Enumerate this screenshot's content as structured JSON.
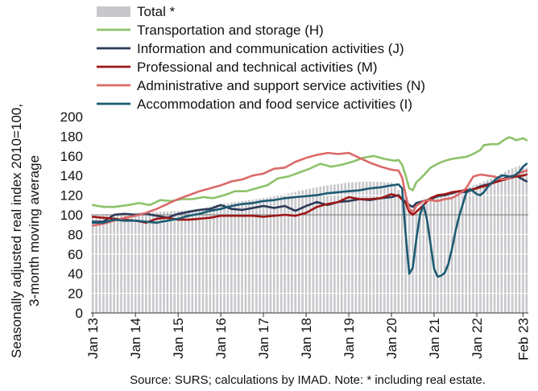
{
  "chart_data": {
    "type": "line",
    "title": "",
    "ylabel": "Seasonally adjusted real index 2010=100, 3-month moving average",
    "xlabel": "",
    "ylim": [
      0,
      200
    ],
    "yticks": [
      "0",
      "20",
      "40",
      "60",
      "80",
      "100",
      "120",
      "140",
      "160",
      "180",
      "200"
    ],
    "xtick_labels": [
      "Jan 13",
      "Jan 14",
      "Jan 15",
      "Jan 16",
      "Jan 17",
      "Jan 18",
      "Jan 19",
      "Jan 20",
      "Jan 21",
      "Jan 22",
      "Feb 23"
    ],
    "x_start": "Jan 2013",
    "x_end": "Feb 2023",
    "grid": "horizontal",
    "legend_position": "top-left",
    "source": "Source: SURS; calculations by IMAD. Note: * including real estate.",
    "bars": {
      "name": "Total *",
      "color": "#c8c8cc",
      "anchors": [
        [
          0,
          99
        ],
        [
          6,
          100
        ],
        [
          12,
          102
        ],
        [
          18,
          103
        ],
        [
          24,
          104
        ],
        [
          30,
          106
        ],
        [
          36,
          111
        ],
        [
          42,
          114
        ],
        [
          48,
          117
        ],
        [
          54,
          121
        ],
        [
          60,
          126
        ],
        [
          66,
          130
        ],
        [
          72,
          133
        ],
        [
          78,
          134
        ],
        [
          84,
          133
        ],
        [
          88,
          118
        ],
        [
          90,
          104
        ],
        [
          93,
          108
        ],
        [
          96,
          118
        ],
        [
          102,
          124
        ],
        [
          108,
          131
        ],
        [
          114,
          140
        ],
        [
          117,
          146
        ],
        [
          120,
          150
        ],
        [
          122,
          148
        ]
      ]
    },
    "series": [
      {
        "name": "Transportation and storage (H)",
        "color": "#8dc26a",
        "anchors": [
          [
            0,
            110
          ],
          [
            3,
            108
          ],
          [
            6,
            108
          ],
          [
            10,
            110
          ],
          [
            13,
            112
          ],
          [
            16,
            110
          ],
          [
            19,
            115
          ],
          [
            22,
            114
          ],
          [
            25,
            116
          ],
          [
            28,
            116
          ],
          [
            31,
            118
          ],
          [
            34,
            117
          ],
          [
            37,
            120
          ],
          [
            40,
            124
          ],
          [
            43,
            124
          ],
          [
            46,
            127
          ],
          [
            49,
            130
          ],
          [
            52,
            137
          ],
          [
            55,
            139
          ],
          [
            58,
            143
          ],
          [
            61,
            147
          ],
          [
            64,
            152
          ],
          [
            67,
            149
          ],
          [
            70,
            151
          ],
          [
            73,
            154
          ],
          [
            76,
            158
          ],
          [
            79,
            160
          ],
          [
            82,
            157
          ],
          [
            85,
            155
          ],
          [
            86,
            156
          ],
          [
            87,
            151
          ],
          [
            88,
            140
          ],
          [
            89,
            127
          ],
          [
            90,
            125
          ],
          [
            91,
            133
          ],
          [
            93,
            140
          ],
          [
            95,
            148
          ],
          [
            97,
            152
          ],
          [
            99,
            155
          ],
          [
            101,
            157
          ],
          [
            103,
            158
          ],
          [
            105,
            159
          ],
          [
            107,
            162
          ],
          [
            109,
            166
          ],
          [
            110,
            171
          ],
          [
            112,
            172
          ],
          [
            114,
            172
          ],
          [
            116,
            177
          ],
          [
            117,
            179
          ],
          [
            118,
            178
          ],
          [
            119,
            176
          ],
          [
            120,
            177
          ],
          [
            121,
            178
          ],
          [
            122,
            176
          ],
          [
            123,
            172
          ],
          [
            124,
            171
          ]
        ]
      },
      {
        "name": "Information and communication activities (J)",
        "color": "#2b3a57",
        "anchors": [
          [
            0,
            93
          ],
          [
            3,
            93
          ],
          [
            6,
            100
          ],
          [
            9,
            101
          ],
          [
            12,
            100
          ],
          [
            15,
            101
          ],
          [
            18,
            99
          ],
          [
            21,
            97
          ],
          [
            24,
            101
          ],
          [
            27,
            103
          ],
          [
            30,
            105
          ],
          [
            33,
            106
          ],
          [
            36,
            110
          ],
          [
            39,
            106
          ],
          [
            42,
            105
          ],
          [
            45,
            107
          ],
          [
            48,
            109
          ],
          [
            51,
            107
          ],
          [
            54,
            109
          ],
          [
            57,
            104
          ],
          [
            60,
            109
          ],
          [
            63,
            113
          ],
          [
            66,
            110
          ],
          [
            69,
            113
          ],
          [
            72,
            114
          ],
          [
            75,
            116
          ],
          [
            78,
            115
          ],
          [
            81,
            117
          ],
          [
            84,
            118
          ],
          [
            86,
            120
          ],
          [
            87,
            116
          ],
          [
            89,
            110
          ],
          [
            90,
            108
          ],
          [
            91,
            112
          ],
          [
            93,
            114
          ],
          [
            95,
            116
          ],
          [
            97,
            119
          ],
          [
            99,
            120
          ],
          [
            101,
            122
          ],
          [
            103,
            124
          ],
          [
            105,
            123
          ],
          [
            107,
            126
          ],
          [
            109,
            129
          ],
          [
            111,
            131
          ],
          [
            113,
            133
          ],
          [
            115,
            136
          ],
          [
            117,
            139
          ],
          [
            119,
            140
          ],
          [
            120,
            138
          ],
          [
            121,
            136
          ],
          [
            122,
            134
          ],
          [
            123,
            135
          ],
          [
            124,
            139
          ]
        ]
      },
      {
        "name": "Professional and technical activities (M)",
        "color": "#9e1717",
        "anchors": [
          [
            0,
            98
          ],
          [
            3,
            97
          ],
          [
            6,
            96
          ],
          [
            9,
            95
          ],
          [
            12,
            94
          ],
          [
            15,
            92
          ],
          [
            18,
            96
          ],
          [
            21,
            97
          ],
          [
            24,
            95
          ],
          [
            27,
            95
          ],
          [
            30,
            96
          ],
          [
            33,
            97
          ],
          [
            36,
            99
          ],
          [
            39,
            99
          ],
          [
            42,
            99
          ],
          [
            45,
            99
          ],
          [
            48,
            98
          ],
          [
            51,
            99
          ],
          [
            54,
            100
          ],
          [
            57,
            99
          ],
          [
            60,
            102
          ],
          [
            63,
            108
          ],
          [
            66,
            111
          ],
          [
            69,
            113
          ],
          [
            72,
            118
          ],
          [
            75,
            116
          ],
          [
            78,
            116
          ],
          [
            81,
            117
          ],
          [
            84,
            121
          ],
          [
            86,
            119
          ],
          [
            88,
            112
          ],
          [
            89,
            103
          ],
          [
            90,
            100
          ],
          [
            91,
            103
          ],
          [
            93,
            110
          ],
          [
            95,
            117
          ],
          [
            97,
            120
          ],
          [
            99,
            121
          ],
          [
            101,
            123
          ],
          [
            103,
            124
          ],
          [
            105,
            125
          ],
          [
            107,
            126
          ],
          [
            109,
            128
          ],
          [
            111,
            130
          ],
          [
            113,
            133
          ],
          [
            115,
            135
          ],
          [
            117,
            137
          ],
          [
            119,
            139
          ],
          [
            121,
            140
          ],
          [
            123,
            142
          ],
          [
            124,
            143
          ]
        ]
      },
      {
        "name": "Administrative and support service activities (N)",
        "color": "#db6969",
        "anchors": [
          [
            0,
            89
          ],
          [
            3,
            91
          ],
          [
            6,
            94
          ],
          [
            9,
            97
          ],
          [
            12,
            99
          ],
          [
            15,
            102
          ],
          [
            18,
            106
          ],
          [
            21,
            111
          ],
          [
            24,
            116
          ],
          [
            27,
            120
          ],
          [
            30,
            124
          ],
          [
            33,
            127
          ],
          [
            36,
            130
          ],
          [
            39,
            134
          ],
          [
            42,
            136
          ],
          [
            45,
            140
          ],
          [
            48,
            142
          ],
          [
            51,
            147
          ],
          [
            54,
            148
          ],
          [
            57,
            154
          ],
          [
            60,
            158
          ],
          [
            63,
            161
          ],
          [
            66,
            163
          ],
          [
            69,
            162
          ],
          [
            72,
            163
          ],
          [
            75,
            158
          ],
          [
            78,
            153
          ],
          [
            81,
            149
          ],
          [
            84,
            146
          ],
          [
            86,
            145
          ],
          [
            87,
            138
          ],
          [
            88,
            120
          ],
          [
            89,
            106
          ],
          [
            90,
            103
          ],
          [
            91,
            109
          ],
          [
            93,
            114
          ],
          [
            95,
            115
          ],
          [
            97,
            114
          ],
          [
            99,
            116
          ],
          [
            101,
            117
          ],
          [
            103,
            121
          ],
          [
            105,
            127
          ],
          [
            107,
            139
          ],
          [
            109,
            141
          ],
          [
            111,
            140
          ],
          [
            113,
            139
          ],
          [
            115,
            136
          ],
          [
            117,
            137
          ],
          [
            119,
            141
          ],
          [
            121,
            144
          ],
          [
            123,
            146
          ],
          [
            124,
            147
          ]
        ]
      },
      {
        "name": "Accommodation and food service activities (I)",
        "color": "#1c5a72",
        "anchors": [
          [
            0,
            92
          ],
          [
            3,
            92
          ],
          [
            6,
            95
          ],
          [
            9,
            94
          ],
          [
            12,
            94
          ],
          [
            15,
            93
          ],
          [
            18,
            92
          ],
          [
            21,
            94
          ],
          [
            24,
            96
          ],
          [
            27,
            99
          ],
          [
            30,
            101
          ],
          [
            33,
            104
          ],
          [
            36,
            106
          ],
          [
            39,
            109
          ],
          [
            42,
            111
          ],
          [
            45,
            112
          ],
          [
            48,
            114
          ],
          [
            51,
            115
          ],
          [
            54,
            117
          ],
          [
            57,
            118
          ],
          [
            60,
            119
          ],
          [
            63,
            120
          ],
          [
            66,
            122
          ],
          [
            69,
            123
          ],
          [
            72,
            124
          ],
          [
            75,
            125
          ],
          [
            78,
            127
          ],
          [
            81,
            128
          ],
          [
            84,
            130
          ],
          [
            86,
            131
          ],
          [
            87,
            127
          ],
          [
            88,
            80
          ],
          [
            89,
            40
          ],
          [
            90,
            46
          ],
          [
            91,
            75
          ],
          [
            92,
            100
          ],
          [
            93,
            110
          ],
          [
            94,
            95
          ],
          [
            95,
            70
          ],
          [
            96,
            45
          ],
          [
            97,
            37
          ],
          [
            98,
            38
          ],
          [
            99,
            41
          ],
          [
            100,
            50
          ],
          [
            101,
            65
          ],
          [
            102,
            83
          ],
          [
            103,
            98
          ],
          [
            104,
            110
          ],
          [
            105,
            122
          ],
          [
            106,
            126
          ],
          [
            107,
            124
          ],
          [
            108,
            121
          ],
          [
            109,
            120
          ],
          [
            110,
            123
          ],
          [
            111,
            128
          ],
          [
            112,
            132
          ],
          [
            113,
            135
          ],
          [
            114,
            138
          ],
          [
            115,
            140
          ],
          [
            116,
            140
          ],
          [
            117,
            139
          ],
          [
            118,
            139
          ],
          [
            119,
            141
          ],
          [
            120,
            144
          ],
          [
            121,
            149
          ],
          [
            122,
            152
          ],
          [
            123,
            153
          ],
          [
            124,
            152
          ]
        ]
      }
    ]
  }
}
